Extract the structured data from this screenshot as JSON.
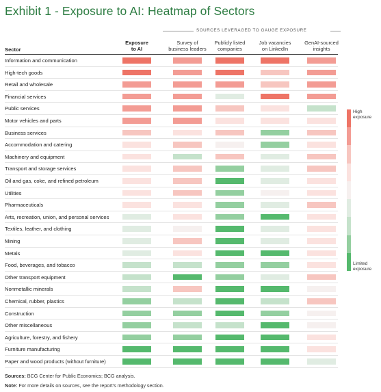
{
  "title": "Exhibit 1 - Exposure to AI: Heatmap of Sectors",
  "sources_header": "SOURCES LEVERAGED TO GAUGE EXPOSURE",
  "sector_header": "Sector",
  "columns": [
    {
      "label": "Exposure\nto AI"
    },
    {
      "label": "Survey of\nbusiness leaders"
    },
    {
      "label": "Publicly listed\ncompanies"
    },
    {
      "label": "Job vacancies\non LinkedIn"
    },
    {
      "label": "GenAI-sourced\ninsights"
    }
  ],
  "legend": {
    "high": "High\nexposure",
    "limited": "Limited\nexposure"
  },
  "colors": {
    "3": "#ee7466",
    "2": "#f39c94",
    "1": "#f7c6c0",
    "0.5": "#fbe2df",
    "0": "#f6f0ef",
    "-0.5": "#e0ece2",
    "-1": "#c5e2cb",
    "-2": "#94cfa0",
    "-3": "#55b96d"
  },
  "chart_data": {
    "type": "heatmap",
    "scale": "levels from -3 (limited exposure) to 3 (high exposure)",
    "x": [
      "Exposure to AI",
      "Survey of business leaders",
      "Publicly listed companies",
      "Job vacancies on LinkedIn",
      "GenAI-sourced insights"
    ],
    "rows": [
      {
        "sector": "Information and communication",
        "values": [
          3,
          2,
          3,
          3,
          2
        ]
      },
      {
        "sector": "High-tech goods",
        "values": [
          3,
          2,
          3,
          1,
          2
        ]
      },
      {
        "sector": "Retail and wholesale",
        "values": [
          2,
          2,
          2,
          1,
          2
        ]
      },
      {
        "sector": "Financial services",
        "values": [
          2,
          2,
          -0.5,
          3,
          2
        ]
      },
      {
        "sector": "Public services",
        "values": [
          2,
          2,
          1,
          0.5,
          -1
        ]
      },
      {
        "sector": "Motor vehicles and parts",
        "values": [
          2,
          2,
          0.5,
          0.5,
          0.5
        ]
      },
      {
        "sector": "Business services",
        "values": [
          1,
          0.5,
          1,
          -2,
          1
        ]
      },
      {
        "sector": "Accommodation and catering",
        "values": [
          0.5,
          1,
          0,
          -2,
          0.5
        ]
      },
      {
        "sector": "Machinery and equipment",
        "values": [
          0.5,
          -1,
          1,
          -0.5,
          1
        ]
      },
      {
        "sector": "Transport and storage services",
        "values": [
          0.5,
          1,
          -2,
          -0.5,
          1
        ]
      },
      {
        "sector": "Oil and gas, coke, and refined petroleum",
        "values": [
          0.5,
          1,
          -3,
          -0.5,
          0.5
        ]
      },
      {
        "sector": "Utilities",
        "values": [
          0.5,
          1,
          -2,
          0,
          0.5
        ]
      },
      {
        "sector": "Pharmaceuticals",
        "values": [
          0.5,
          0.5,
          -2,
          -0.5,
          1
        ]
      },
      {
        "sector": "Arts, recreation, union, and personal services",
        "values": [
          -0.5,
          0.5,
          -2,
          -3,
          0.5
        ]
      },
      {
        "sector": "Textiles, leather, and clothing",
        "values": [
          -0.5,
          0,
          -3,
          -0.5,
          0.5
        ]
      },
      {
        "sector": "Mining",
        "values": [
          -0.5,
          1,
          -3,
          -0.5,
          0.5
        ]
      },
      {
        "sector": "Metals",
        "values": [
          -0.5,
          0.5,
          -3,
          -3,
          0.5
        ]
      },
      {
        "sector": "Food, beverages, and tobacco",
        "values": [
          -1,
          -1,
          -2,
          -2,
          0.5
        ]
      },
      {
        "sector": "Other transport equipment",
        "values": [
          -1,
          -3,
          -2,
          -0.5,
          1
        ]
      },
      {
        "sector": "Nonmetallic minerals",
        "values": [
          -1,
          1,
          -3,
          -3,
          0
        ]
      },
      {
        "sector": "Chemical, rubber, plastics",
        "values": [
          -2,
          -1,
          -3,
          -1,
          1
        ]
      },
      {
        "sector": "Construction",
        "values": [
          -2,
          -2,
          -3,
          -2,
          0
        ]
      },
      {
        "sector": "Other miscellaneous",
        "values": [
          -2,
          -1,
          -1,
          -3,
          0
        ]
      },
      {
        "sector": "Agriculture, forestry, and fishery",
        "values": [
          -2,
          -2,
          -3,
          -3,
          0.5
        ]
      },
      {
        "sector": "Furniture manufacturing",
        "values": [
          -3,
          -3,
          -3,
          -3,
          0.5
        ]
      },
      {
        "sector": "Paper and wood products (without furniture)",
        "values": [
          -3,
          -3,
          -3,
          -3,
          -0.5
        ]
      }
    ]
  },
  "footer": {
    "sources_label": "Sources:",
    "sources_text": " BCG Center for Public Economics; BCG analysis.",
    "note_label": "Note:",
    "note_text": " For more details on sources, see the report's methodology section."
  }
}
